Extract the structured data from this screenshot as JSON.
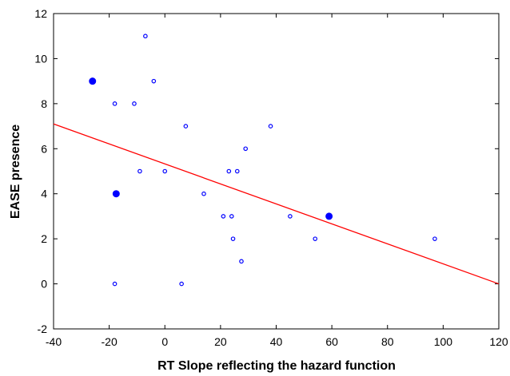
{
  "chart_data": {
    "type": "scatter",
    "title": "",
    "xlabel": "RT Slope reflecting the hazard function",
    "ylabel": "EASE presence",
    "xlim": [
      -40,
      120
    ],
    "ylim": [
      -2,
      12
    ],
    "xticks": [
      -40,
      -20,
      0,
      20,
      40,
      60,
      80,
      100,
      120
    ],
    "yticks": [
      -2,
      0,
      2,
      4,
      6,
      8,
      10,
      12
    ],
    "grid": false,
    "legend": "none",
    "colors": {
      "points": "#0000ff",
      "fit_line": "#ff0000",
      "axes": "#000000"
    },
    "points": [
      {
        "x": -26,
        "y": 9,
        "weight": 2
      },
      {
        "x": -18,
        "y": 8,
        "weight": 1
      },
      {
        "x": -18,
        "y": 0,
        "weight": 1
      },
      {
        "x": -17.5,
        "y": 4,
        "weight": 2
      },
      {
        "x": -11,
        "y": 8,
        "weight": 1
      },
      {
        "x": -9,
        "y": 5,
        "weight": 1
      },
      {
        "x": -7,
        "y": 11,
        "weight": 1
      },
      {
        "x": -4,
        "y": 9,
        "weight": 1
      },
      {
        "x": 0,
        "y": 5,
        "weight": 1
      },
      {
        "x": 6,
        "y": 0,
        "weight": 1
      },
      {
        "x": 7.5,
        "y": 7,
        "weight": 1
      },
      {
        "x": 14,
        "y": 4,
        "weight": 1
      },
      {
        "x": 21,
        "y": 3,
        "weight": 1
      },
      {
        "x": 23,
        "y": 5,
        "weight": 1
      },
      {
        "x": 24,
        "y": 3,
        "weight": 1
      },
      {
        "x": 24.5,
        "y": 2,
        "weight": 1
      },
      {
        "x": 26,
        "y": 5,
        "weight": 1
      },
      {
        "x": 27.5,
        "y": 1,
        "weight": 1
      },
      {
        "x": 29,
        "y": 6,
        "weight": 1
      },
      {
        "x": 38,
        "y": 7,
        "weight": 1
      },
      {
        "x": 45,
        "y": 3,
        "weight": 1
      },
      {
        "x": 54,
        "y": 2,
        "weight": 1
      },
      {
        "x": 59,
        "y": 3,
        "weight": 2
      },
      {
        "x": 97,
        "y": 2,
        "weight": 1
      }
    ],
    "fit_line": {
      "x": [
        -40,
        120
      ],
      "y": [
        7.1,
        0.0
      ]
    }
  }
}
